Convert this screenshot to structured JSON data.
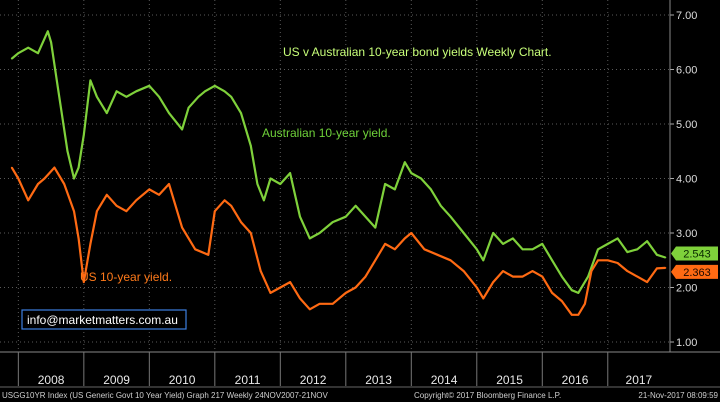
{
  "chart_data": {
    "type": "line",
    "title": "US v Australian 10-year bond yields Weekly Chart.",
    "ylim": [
      0.7,
      7.3
    ],
    "yticks": [
      "1.00",
      "2.00",
      "3.00",
      "4.00",
      "5.00",
      "6.00",
      "7.00"
    ],
    "x_categories": [
      "2008",
      "2009",
      "2010",
      "2011",
      "2012",
      "2013",
      "2014",
      "2015",
      "2016",
      "2017"
    ],
    "grid": true,
    "series": [
      {
        "name": "Australian 10-year yield.",
        "color": "#7fd13b",
        "last_value_label": "2.543",
        "x": [
          2007.9,
          2008.0,
          2008.15,
          2008.3,
          2008.45,
          2008.5,
          2008.6,
          2008.75,
          2008.85,
          2008.92,
          2009.0,
          2009.1,
          2009.2,
          2009.35,
          2009.5,
          2009.65,
          2009.8,
          2010.0,
          2010.15,
          2010.3,
          2010.5,
          2010.6,
          2010.75,
          2010.85,
          2011.0,
          2011.15,
          2011.25,
          2011.4,
          2011.55,
          2011.65,
          2011.75,
          2011.85,
          2012.0,
          2012.15,
          2012.3,
          2012.45,
          2012.6,
          2012.8,
          2013.0,
          2013.15,
          2013.3,
          2013.45,
          2013.6,
          2013.75,
          2013.9,
          2014.0,
          2014.15,
          2014.3,
          2014.45,
          2014.6,
          2014.8,
          2015.0,
          2015.1,
          2015.25,
          2015.4,
          2015.55,
          2015.7,
          2015.85,
          2016.0,
          2016.15,
          2016.3,
          2016.45,
          2016.55,
          2016.7,
          2016.85,
          2017.0,
          2017.15,
          2017.3,
          2017.45,
          2017.6,
          2017.75,
          2017.88
        ],
        "y": [
          6.2,
          6.3,
          6.4,
          6.3,
          6.7,
          6.5,
          5.7,
          4.5,
          4.0,
          4.2,
          4.8,
          5.8,
          5.5,
          5.2,
          5.6,
          5.5,
          5.6,
          5.7,
          5.5,
          5.2,
          4.9,
          5.3,
          5.5,
          5.6,
          5.7,
          5.6,
          5.5,
          5.2,
          4.6,
          3.9,
          3.6,
          4.0,
          3.9,
          4.1,
          3.3,
          2.9,
          3.0,
          3.2,
          3.3,
          3.5,
          3.3,
          3.1,
          3.9,
          3.8,
          4.3,
          4.1,
          4.0,
          3.8,
          3.5,
          3.3,
          3.0,
          2.7,
          2.5,
          3.0,
          2.8,
          2.9,
          2.7,
          2.7,
          2.8,
          2.5,
          2.2,
          1.95,
          1.9,
          2.2,
          2.7,
          2.8,
          2.9,
          2.65,
          2.7,
          2.85,
          2.6,
          2.55
        ]
      },
      {
        "name": "US 10-year yield.",
        "color": "#ff6a13",
        "last_value_label": "2.363",
        "x": [
          2007.9,
          2008.0,
          2008.15,
          2008.3,
          2008.4,
          2008.55,
          2008.7,
          2008.85,
          2008.92,
          2009.0,
          2009.1,
          2009.2,
          2009.35,
          2009.5,
          2009.65,
          2009.8,
          2010.0,
          2010.15,
          2010.3,
          2010.5,
          2010.7,
          2010.9,
          2011.0,
          2011.15,
          2011.25,
          2011.4,
          2011.55,
          2011.7,
          2011.85,
          2012.0,
          2012.15,
          2012.3,
          2012.45,
          2012.6,
          2012.8,
          2013.0,
          2013.15,
          2013.3,
          2013.45,
          2013.6,
          2013.75,
          2013.9,
          2014.0,
          2014.2,
          2014.4,
          2014.6,
          2014.8,
          2015.0,
          2015.1,
          2015.25,
          2015.4,
          2015.55,
          2015.7,
          2015.85,
          2016.0,
          2016.15,
          2016.3,
          2016.45,
          2016.55,
          2016.65,
          2016.75,
          2016.85,
          2017.0,
          2017.15,
          2017.3,
          2017.45,
          2017.6,
          2017.75,
          2017.88
        ],
        "y": [
          4.2,
          4.0,
          3.6,
          3.9,
          4.0,
          4.2,
          3.9,
          3.4,
          2.9,
          2.1,
          2.8,
          3.4,
          3.7,
          3.5,
          3.4,
          3.6,
          3.8,
          3.7,
          3.9,
          3.1,
          2.7,
          2.6,
          3.4,
          3.6,
          3.5,
          3.2,
          3.0,
          2.3,
          1.9,
          2.0,
          2.1,
          1.8,
          1.6,
          1.7,
          1.7,
          1.9,
          2.0,
          2.2,
          2.5,
          2.8,
          2.7,
          2.9,
          3.0,
          2.7,
          2.6,
          2.5,
          2.3,
          2.0,
          1.8,
          2.1,
          2.3,
          2.2,
          2.2,
          2.3,
          2.2,
          1.9,
          1.75,
          1.5,
          1.5,
          1.7,
          2.3,
          2.5,
          2.5,
          2.45,
          2.3,
          2.2,
          2.1,
          2.35,
          2.36
        ]
      }
    ],
    "annotations": [
      "US v Australian 10-year bond yields Weekly Chart.",
      "Australian 10-year yield.",
      "US 10-year yield."
    ]
  },
  "watermark": "info@marketmatters.com.au",
  "footer": {
    "left": "USGG10YR Index (US Generic Govt 10 Year Yield) Graph 217  Weekly 24NOV2007-21NOV",
    "copyright": "Copyright© 2017 Bloomberg Finance L.P.",
    "timestamp": "21-Nov-2017 08:09:59"
  },
  "colors": {
    "background": "#000000",
    "grid": "#5a5a5a",
    "australian": "#7fd13b",
    "us": "#ff6a13",
    "watermark_border": "#3d7fe0"
  }
}
